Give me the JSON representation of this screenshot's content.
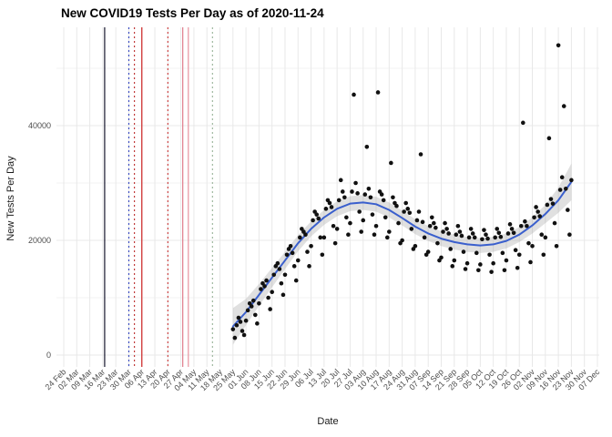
{
  "title": "New COVID19 Tests Per Day as of 2020-11-24",
  "x_axis": {
    "label": "Date",
    "ticks": [
      "24 Feb",
      "02 Mar",
      "09 Mar",
      "16 Mar",
      "23 Mar",
      "30 Mar",
      "06 Apr",
      "13 Apr",
      "20 Apr",
      "27 Apr",
      "04 May",
      "11 May",
      "18 May",
      "25 May",
      "01 Jun",
      "08 Jun",
      "15 Jun",
      "22 Jun",
      "29 Jun",
      "06 Jul",
      "13 Jul",
      "20 Jul",
      "27 Jul",
      "03 Aug",
      "10 Aug",
      "17 Aug",
      "24 Aug",
      "31 Aug",
      "07 Sep",
      "14 Sep",
      "21 Sep",
      "28 Sep",
      "05 Oct",
      "12 Oct",
      "19 Oct",
      "26 Oct",
      "02 Nov",
      "09 Nov",
      "16 Nov",
      "23 Nov",
      "30 Nov",
      "07 Dec"
    ]
  },
  "y_axis": {
    "label": "New Tests Per Day",
    "ticks": [
      "0",
      "20000",
      "40000"
    ],
    "tick_values": [
      0,
      20000,
      40000
    ],
    "minor_values": [
      10000,
      30000,
      50000
    ]
  },
  "colors": {
    "point": "#111111",
    "trend_line": "#3a5fcd",
    "ribbon": "#999999",
    "grid_major": "#e8e8e8",
    "grid_minor": "#f3f3f3",
    "tick_text": "#4d4d4d"
  },
  "chart_data": {
    "type": "scatter",
    "title": "New COVID19 Tests Per Day as of 2020-11-24",
    "xlabel": "Date",
    "ylabel": "New Tests Per Day",
    "x_range": [
      "2020-02-24",
      "2020-12-07"
    ],
    "ylim": [
      0,
      57000
    ],
    "grid": true,
    "legend": "none",
    "scatter": {
      "name": "daily new tests",
      "start_date": "2020-05-25",
      "cadence_days": 1,
      "values": [
        4500,
        3000,
        5200,
        6500,
        5800,
        4200,
        3500,
        6000,
        7800,
        9000,
        8500,
        9500,
        7000,
        5500,
        9000,
        11500,
        12500,
        12000,
        13000,
        10000,
        8000,
        11000,
        14000,
        15500,
        16000,
        15000,
        12500,
        10500,
        14000,
        17500,
        18500,
        19000,
        17800,
        15500,
        13000,
        16500,
        20500,
        22000,
        21500,
        21000,
        18000,
        15500,
        19000,
        23500,
        25000,
        24500,
        23800,
        20500,
        17500,
        20500,
        25500,
        27000,
        26500,
        25800,
        22500,
        19500,
        22000,
        27000,
        30500,
        28500,
        27500,
        24000,
        21000,
        23000,
        28500,
        45400,
        30000,
        28200,
        25000,
        21500,
        23500,
        28000,
        36300,
        29000,
        27500,
        24500,
        21000,
        22500,
        45800,
        28500,
        28000,
        27000,
        24000,
        20500,
        21500,
        33500,
        27500,
        26500,
        26000,
        23000,
        19500,
        20000,
        25000,
        26500,
        25500,
        24800,
        22000,
        18500,
        19000,
        23500,
        25000,
        35000,
        23200,
        20500,
        17500,
        18000,
        22500,
        24000,
        23000,
        22200,
        19500,
        16500,
        17000,
        21500,
        23000,
        22000,
        21200,
        18500,
        15500,
        16500,
        21000,
        22500,
        21500,
        20800,
        18000,
        15000,
        16000,
        20500,
        22000,
        21200,
        20500,
        17800,
        14800,
        15800,
        20200,
        21800,
        21000,
        20300,
        17500,
        14500,
        16000,
        20500,
        22000,
        21300,
        20600,
        17800,
        14800,
        16500,
        21200,
        22800,
        22000,
        21300,
        18300,
        15200,
        17500,
        22500,
        40500,
        23300,
        22500,
        19500,
        16200,
        19000,
        24000,
        25800,
        25000,
        24200,
        21000,
        17500,
        20500,
        26200,
        37800,
        27200,
        26400,
        23000,
        19000,
        54000,
        28800,
        31000,
        43400,
        29000,
        25300,
        21000,
        30500
      ]
    },
    "smooth": {
      "name": "loess trend with confidence band",
      "start_date": "2020-05-25",
      "cadence_days": 7,
      "values": [
        5000,
        7500,
        10500,
        13500,
        16500,
        19500,
        22000,
        24000,
        25500,
        26400,
        26600,
        26300,
        25300,
        23900,
        22400,
        21200,
        20300,
        19700,
        19300,
        19100,
        19300,
        19900,
        21000,
        22600,
        24600,
        27000,
        30200
      ],
      "band_halfwidth": [
        3200,
        2300,
        1900,
        1700,
        1500,
        1400,
        1300,
        1300,
        1300,
        1300,
        1300,
        1300,
        1300,
        1300,
        1300,
        1300,
        1300,
        1300,
        1300,
        1300,
        1300,
        1300,
        1300,
        1400,
        1600,
        2200,
        3200
      ]
    },
    "vlines": [
      {
        "date": "2020-03-17",
        "color": "#16162e",
        "style": "solid"
      },
      {
        "date": "2020-03-30",
        "color": "#3b4cc0",
        "style": "dotted"
      },
      {
        "date": "2020-04-02",
        "color": "#c03b3b",
        "style": "dotted"
      },
      {
        "date": "2020-04-06",
        "color": "#cc2222",
        "style": "solid"
      },
      {
        "date": "2020-04-20",
        "color": "#cc4444",
        "style": "dotted"
      },
      {
        "date": "2020-04-28",
        "color": "#e07b8a",
        "style": "solid"
      },
      {
        "date": "2020-05-01",
        "color": "#e8939f",
        "style": "solid"
      },
      {
        "date": "2020-05-14",
        "color": "#9fb89f",
        "style": "dotted"
      }
    ]
  }
}
